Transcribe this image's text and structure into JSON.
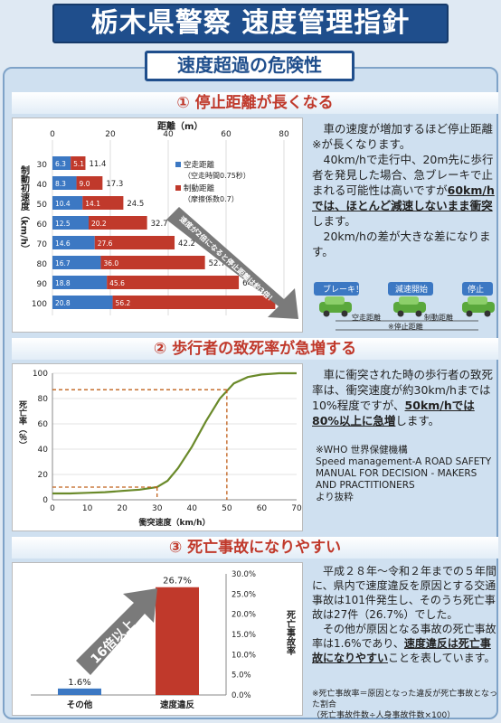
{
  "header": {
    "title": "栃木県警察 速度管理指針",
    "subtitle": "速度超過の危険性"
  },
  "section1": {
    "heading": "① 停止距離が長くなる",
    "text_p1a": "　車の速度が増加するほど停止距離※が長くなります。",
    "text_p2a": "　40km/hで走行中、20m先に歩行者を発見した場合、急ブレーキで止まれる可能性は高いですが",
    "text_p2b": "60km/hでは、ほとんど減速しないまま衝突",
    "text_p2c": "します。",
    "text_p3": "　20km/hの差が大きな差になります。",
    "diagram": {
      "brake": "ブレーキ！",
      "start": "減速開始",
      "stop": "停止",
      "label_free": "空走距離",
      "label_brake": "制動距離",
      "label_total": "※停止距離"
    }
  },
  "chart1": {
    "type": "bar",
    "title": "距離（m）",
    "ylabel": "制動初速度（km/h）",
    "xlim": [
      0,
      80
    ],
    "xticks": [
      "0",
      "20",
      "40",
      "60",
      "80"
    ],
    "categories": [
      "30",
      "40",
      "50",
      "60",
      "70",
      "80",
      "90",
      "100"
    ],
    "series": [
      {
        "name": "空走距離",
        "note": "（空走時間0.75秒）",
        "values": [
          6.3,
          8.3,
          10.4,
          12.5,
          14.6,
          16.7,
          18.8,
          20.8
        ]
      },
      {
        "name": "制動距離",
        "note": "（摩擦係数0.7）",
        "values": [
          5.1,
          9.0,
          14.1,
          20.2,
          27.6,
          36.0,
          45.6,
          56.2
        ]
      }
    ],
    "totals": [
      "11.4",
      "17.3",
      "24.5",
      "32.7",
      "42.2",
      "52.7",
      "64.4",
      "77.0"
    ],
    "free_labels": [
      "6.3",
      "8.3",
      "10.4",
      "12.5",
      "14.6",
      "16.7",
      "18.8",
      "20.8"
    ],
    "brake_labels": [
      "5.1",
      "9.0",
      "14.1",
      "20.2",
      "27.6",
      "36.0",
      "45.6",
      "56.2"
    ],
    "arrow_text": "速度が2倍になると停止距離は約3倍！",
    "colors": {
      "free": "#3c78c3",
      "brake": "#c0392b"
    }
  },
  "section2": {
    "heading": "② 歩行者の致死率が急増する",
    "text_a": "　車に衝突された時の歩行者の致死率は、衝突速度が約30km/hまでは10%程度ですが、",
    "text_b": "50km/hでは80%以上に急増",
    "text_c": "します。",
    "source_a": "※WHO 世界保健機構",
    "source_b": "Speed management-A ROAD SAFETY MANUAL FOR DECISION - MAKERS AND PRACTITIONERS",
    "source_c": "より抜粋"
  },
  "chart2": {
    "type": "line",
    "xlabel": "衝突速度（km/h）",
    "ylabel": "死亡率（％）",
    "xlim": [
      0,
      70
    ],
    "ylim": [
      0,
      100
    ],
    "xticks": [
      "0",
      "10",
      "20",
      "30",
      "40",
      "50",
      "60",
      "70"
    ],
    "yticks": [
      "0",
      "20",
      "40",
      "60",
      "80",
      "100"
    ],
    "x": [
      0,
      5,
      10,
      15,
      20,
      25,
      30,
      33,
      36,
      40,
      44,
      48,
      52,
      56,
      60,
      65,
      70
    ],
    "y": [
      5,
      5,
      5.5,
      6,
      7,
      8,
      10,
      15,
      25,
      42,
      62,
      80,
      92,
      97,
      99,
      100,
      100
    ],
    "markers": [
      {
        "x": 30,
        "y": 10
      },
      {
        "x": 50,
        "y": 87
      }
    ],
    "color": "#6a8a2a"
  },
  "section3": {
    "heading": "③ 死亡事故になりやすい",
    "text_p1": "　平成２８年～令和２年までの５年間に、県内で速度違反を原因とする交通事故は101件発生し、そのうち死亡事故は27件（26.7%）でした。",
    "text_p2a": "　その他が原因となる事故の死亡事故率は1.6%であり、",
    "text_p2b": "速度違反は死亡事故になりやすい",
    "text_p2c": "ことを表しています。",
    "note_a": "※死亡事故率＝原因となった違反が死亡事故となった割合",
    "note_b": "（死亡事故件数÷人身事故件数×100）"
  },
  "chart3": {
    "type": "bar",
    "ylabel": "死亡事故率",
    "ylim": [
      0,
      30
    ],
    "yticks": [
      "0.0%",
      "5.0%",
      "10.0%",
      "15.0%",
      "20.0%",
      "25.0%",
      "30.0%"
    ],
    "categories": [
      "その他",
      "速度違反"
    ],
    "values": [
      1.6,
      26.7
    ],
    "value_labels": [
      "1.6%",
      "26.7%"
    ],
    "colors": [
      "#3c78c3",
      "#c0392b"
    ],
    "arrow_text": "16倍以上"
  }
}
